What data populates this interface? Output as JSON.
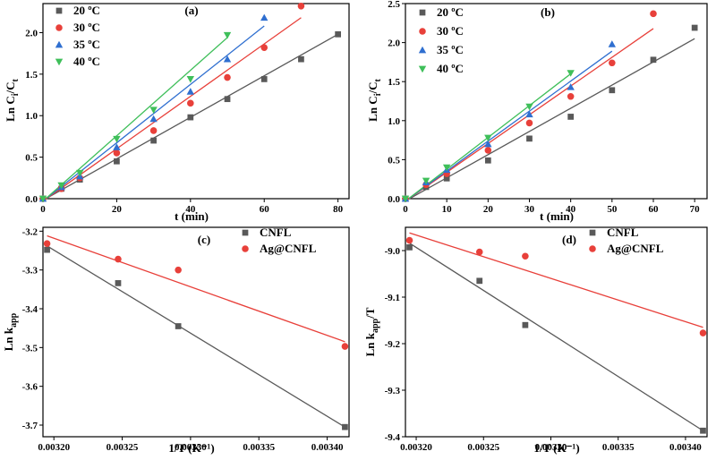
{
  "chart_data": [
    {
      "panel": "(a)",
      "type": "scatter",
      "fit_lines": true,
      "xlabel": "t (min)",
      "ylabel": "Ln Ci/Ct",
      "ylabel_main": "Ln C",
      "ylabel_sub1": "i",
      "ylabel_mid": "/C",
      "ylabel_sub2": "t",
      "xlim": [
        0,
        83
      ],
      "ylim": [
        0,
        2.35
      ],
      "xticks": [
        0,
        20,
        40,
        60,
        80
      ],
      "xtick_labels": [
        "0",
        "20",
        "40",
        "60",
        "80"
      ],
      "yticks": [
        0,
        0.5,
        1.0,
        1.5,
        2.0
      ],
      "ytick_labels": [
        "0.0",
        "0.5",
        "1.0",
        "1.5",
        "2.0"
      ],
      "legend_position": "top-left",
      "series": [
        {
          "name": "20 ºC",
          "marker": "square",
          "color": "#595959",
          "x": [
            0,
            5,
            10,
            20,
            30,
            40,
            50,
            60,
            70,
            80
          ],
          "y": [
            0,
            0.12,
            0.23,
            0.45,
            0.7,
            0.98,
            1.2,
            1.44,
            1.68,
            1.98
          ],
          "fit": [
            [
              0,
              -0.02
            ],
            [
              80,
              1.98
            ]
          ]
        },
        {
          "name": "30 ºC",
          "marker": "circle",
          "color": "#e8403a",
          "x": [
            0,
            5,
            10,
            20,
            30,
            40,
            50,
            60,
            70
          ],
          "y": [
            0,
            0.12,
            0.25,
            0.55,
            0.82,
            1.15,
            1.46,
            1.82,
            2.32
          ],
          "fit": [
            [
              0,
              -0.03
            ],
            [
              70,
              2.18
            ]
          ]
        },
        {
          "name": "35 ºC",
          "marker": "triangle-up",
          "color": "#2f6fd0",
          "x": [
            0,
            5,
            10,
            20,
            30,
            40,
            50,
            60
          ],
          "y": [
            0,
            0.14,
            0.27,
            0.62,
            0.96,
            1.29,
            1.68,
            2.18
          ],
          "fit": [
            [
              0,
              -0.03
            ],
            [
              60,
              2.08
            ]
          ]
        },
        {
          "name": "40 ºC",
          "marker": "triangle-down",
          "color": "#3fbf5a",
          "x": [
            0,
            5,
            10,
            20,
            30,
            40,
            50
          ],
          "y": [
            0,
            0.16,
            0.31,
            0.72,
            1.07,
            1.44,
            1.97
          ],
          "fit": [
            [
              0,
              -0.03
            ],
            [
              50,
              1.94
            ]
          ]
        }
      ]
    },
    {
      "panel": "(b)",
      "type": "scatter",
      "fit_lines": true,
      "xlabel": "t (min)",
      "ylabel": "Ln Ci/Ct",
      "ylabel_main": "Ln C",
      "ylabel_sub1": "i",
      "ylabel_mid": "/C",
      "ylabel_sub2": "t",
      "xlim": [
        0,
        73
      ],
      "ylim": [
        0,
        2.5
      ],
      "xticks": [
        0,
        10,
        20,
        30,
        40,
        50,
        60,
        70
      ],
      "xtick_labels": [
        "0",
        "10",
        "20",
        "30",
        "40",
        "50",
        "60",
        "70"
      ],
      "yticks": [
        0,
        0.5,
        1.0,
        1.5,
        2.0,
        2.5
      ],
      "ytick_labels": [
        "0.0",
        "0.5",
        "1.0",
        "1.5",
        "2.0",
        "2.5"
      ],
      "legend_position": "top-left",
      "series": [
        {
          "name": "20 ºC",
          "marker": "square",
          "color": "#595959",
          "x": [
            0,
            5,
            10,
            20,
            30,
            40,
            50,
            60,
            70
          ],
          "y": [
            0,
            0.15,
            0.26,
            0.49,
            0.77,
            1.05,
            1.39,
            1.78,
            2.19
          ],
          "fit": [
            [
              0,
              -0.03
            ],
            [
              70,
              2.05
            ]
          ]
        },
        {
          "name": "30 ºC",
          "marker": "circle",
          "color": "#e8403a",
          "x": [
            0,
            5,
            10,
            20,
            30,
            40,
            50,
            60
          ],
          "y": [
            0,
            0.18,
            0.32,
            0.62,
            0.97,
            1.31,
            1.74,
            2.37
          ],
          "fit": [
            [
              0,
              -0.03
            ],
            [
              60,
              2.18
            ]
          ]
        },
        {
          "name": "35 ºC",
          "marker": "triangle-up",
          "color": "#2f6fd0",
          "x": [
            0,
            5,
            10,
            20,
            30,
            40,
            50
          ],
          "y": [
            0,
            0.21,
            0.37,
            0.7,
            1.08,
            1.43,
            1.98
          ],
          "fit": [
            [
              0,
              -0.03
            ],
            [
              50,
              1.89
            ]
          ]
        },
        {
          "name": "40 ºC",
          "marker": "triangle-down",
          "color": "#3fbf5a",
          "x": [
            0,
            5,
            10,
            20,
            30,
            40
          ],
          "y": [
            0,
            0.23,
            0.4,
            0.78,
            1.18,
            1.61
          ],
          "fit": [
            [
              0,
              -0.03
            ],
            [
              40,
              1.6
            ]
          ]
        }
      ]
    },
    {
      "panel": "(c)",
      "type": "scatter",
      "fit_lines": true,
      "xlabel": "1/T (K⁻¹)",
      "ylabel": "Ln kapp",
      "ylabel_main": "Ln k",
      "ylabel_sub1": "app",
      "xlim": [
        0.003192,
        0.003416
      ],
      "ylim": [
        -3.73,
        -3.19
      ],
      "xticks": [
        0.0032,
        0.00325,
        0.0033,
        0.00335,
        0.0034
      ],
      "xtick_labels": [
        "0.00320",
        "0.00325",
        "0.00330",
        "0.00335",
        "0.00340"
      ],
      "yticks": [
        -3.2,
        -3.3,
        -3.4,
        -3.5,
        -3.6,
        -3.7
      ],
      "ytick_labels": [
        "-3.2",
        "-3.3",
        "-3.4",
        "-3.5",
        "-3.6",
        "-3.7"
      ],
      "legend_position": "top-right",
      "series": [
        {
          "name": "CNFL",
          "marker": "square",
          "color": "#595959",
          "x": [
            0.003195,
            0.003247,
            0.003291,
            0.003413
          ],
          "y": [
            -3.248,
            -3.334,
            -3.445,
            -3.705
          ],
          "fit": [
            [
              0.003195,
              -3.238
            ],
            [
              0.003413,
              -3.705
            ]
          ]
        },
        {
          "name": "Ag@CNFL",
          "marker": "circle",
          "color": "#e8403a",
          "x": [
            0.003195,
            0.003247,
            0.003291,
            0.003413
          ],
          "y": [
            -3.232,
            -3.272,
            -3.3,
            -3.497
          ],
          "fit": [
            [
              0.003195,
              -3.212
            ],
            [
              0.003413,
              -3.485
            ]
          ]
        }
      ]
    },
    {
      "panel": "(d)",
      "type": "scatter",
      "fit_lines": true,
      "xlabel": "1/T (K⁻¹)",
      "ylabel": "Ln kapp/T",
      "ylabel_main": "Ln k",
      "ylabel_sub1": "app",
      "ylabel_mid": "/T",
      "xlim": [
        0.003192,
        0.003416
      ],
      "ylim": [
        -9.4,
        -8.95
      ],
      "xticks": [
        0.0032,
        0.00325,
        0.0033,
        0.00335,
        0.0034
      ],
      "xtick_labels": [
        "0.00320",
        "0.00325",
        "0.00330",
        "0.00335",
        "0.00340"
      ],
      "yticks": [
        -9.0,
        -9.1,
        -9.2,
        -9.3,
        -9.4
      ],
      "ytick_labels": [
        "-9.0",
        "-9.1",
        "-9.2",
        "-9.3",
        "-9.4"
      ],
      "legend_position": "top-right",
      "series": [
        {
          "name": "CNFL",
          "marker": "square",
          "color": "#595959",
          "x": [
            0.003195,
            0.003247,
            0.003281,
            0.003413
          ],
          "y": [
            -8.993,
            -9.065,
            -9.16,
            -9.387
          ],
          "fit": [
            [
              0.003195,
              -8.984
            ],
            [
              0.003413,
              -9.387
            ]
          ]
        },
        {
          "name": "Ag@CNFL",
          "marker": "circle",
          "color": "#e8403a",
          "x": [
            0.003195,
            0.003247,
            0.003281,
            0.003413
          ],
          "y": [
            -8.978,
            -9.003,
            -9.012,
            -9.177
          ],
          "fit": [
            [
              0.003195,
              -8.962
            ],
            [
              0.003413,
              -9.165
            ]
          ]
        }
      ]
    }
  ]
}
